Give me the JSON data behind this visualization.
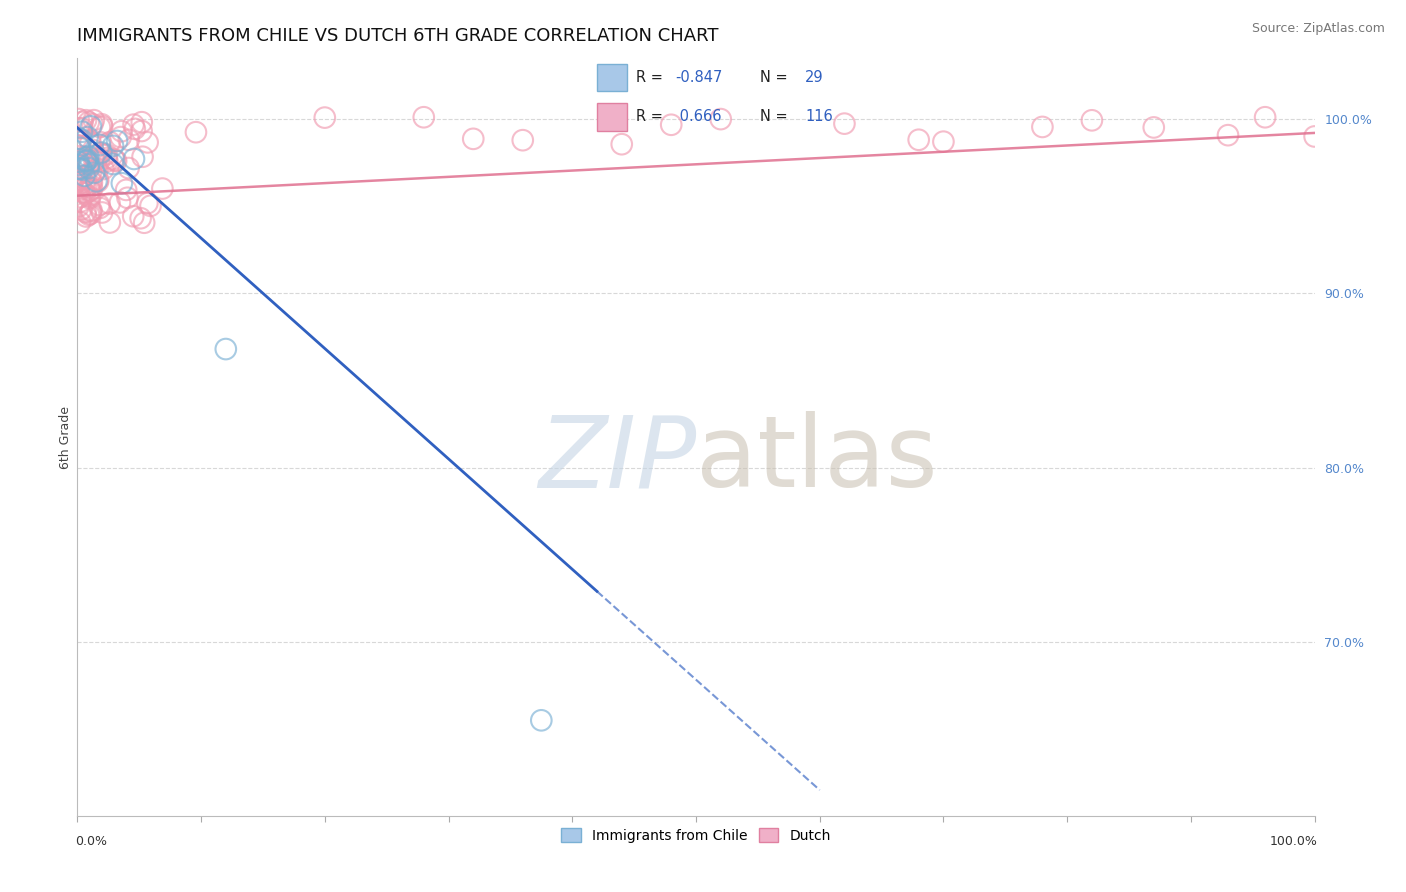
{
  "title": "IMMIGRANTS FROM CHILE VS DUTCH 6TH GRADE CORRELATION CHART",
  "source_text": "Source: ZipAtlas.com",
  "ylabel": "6th Grade",
  "legend_label1": "Immigrants from Chile",
  "legend_label2": "Dutch",
  "chile_color": "#7ab0d4",
  "dutch_color": "#f09ab0",
  "chile_line_color": "#3060c0",
  "dutch_line_color": "#e07090",
  "background_color": "#ffffff",
  "grid_color": "#d8d8d8",
  "title_fontsize": 13,
  "axis_label_fontsize": 9,
  "tick_fontsize": 9,
  "xlim": [
    0.0,
    1.0
  ],
  "ylim": [
    0.6,
    1.035
  ],
  "right_yticks": [
    0.7,
    0.8,
    0.9,
    1.0
  ],
  "right_yticklabels": [
    "70.0%",
    "80.0%",
    "90.0%",
    "100.0%"
  ],
  "grid_yvals": [
    0.7,
    0.8,
    0.9,
    1.0
  ],
  "chile_line_x0": 0.0,
  "chile_line_y0": 0.995,
  "chile_line_x1": 0.6,
  "chile_line_y1": 0.615,
  "chile_line_solid_end": 0.42,
  "dutch_line_x0": 0.0,
  "dutch_line_y0": 0.956,
  "dutch_line_x1": 1.0,
  "dutch_line_y1": 0.992,
  "watermark_zip_color": "#c5d5e5",
  "watermark_atlas_color": "#c8bfb0",
  "legend_box_color": "#f5f5f5",
  "legend_border_color": "#cccccc",
  "r_value_color": "#3060c0",
  "n_value_color": "#3060c0",
  "legend_r1": "-0.847",
  "legend_n1": "29",
  "legend_r2": "0.666",
  "legend_n2": "116",
  "right_tick_color": "#5588cc"
}
